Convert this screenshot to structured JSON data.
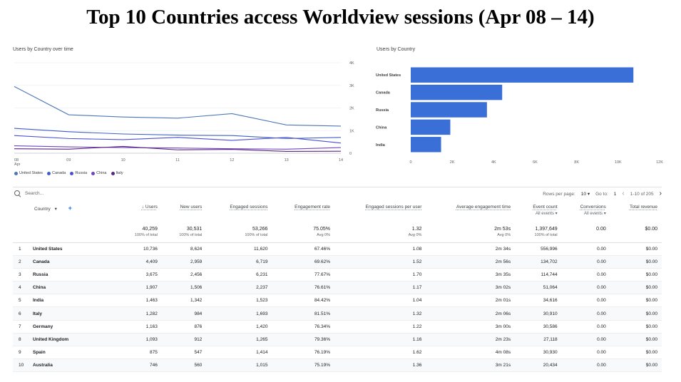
{
  "title": "Top 10 Countries access Worldview sessions (Apr 08 – 14)",
  "line_chart": {
    "card_title": "Users by Country over time",
    "y_ticks": [
      "4K",
      "3K",
      "2K",
      "1K",
      "0"
    ],
    "x_ticks": [
      "08",
      "09",
      "10",
      "11",
      "12",
      "13",
      "14"
    ],
    "x_sub": "Apr",
    "legend": [
      {
        "name": "United States",
        "color": "#4a78b8"
      },
      {
        "name": "Canada",
        "color": "#3f5fc8"
      },
      {
        "name": "Russia",
        "color": "#4a4fd6"
      },
      {
        "name": "China",
        "color": "#7045c0"
      },
      {
        "name": "Italy",
        "color": "#5a2480"
      }
    ]
  },
  "bar_chart": {
    "card_title": "Users by Country",
    "color": "#3b6fd8",
    "x_ticks": [
      "0",
      "2K",
      "4K",
      "6K",
      "8K",
      "10K",
      "12K"
    ]
  },
  "chart_data": [
    {
      "type": "line",
      "title": "Users by Country over time",
      "x": [
        "Apr 08",
        "Apr 09",
        "Apr 10",
        "Apr 11",
        "Apr 12",
        "Apr 13",
        "Apr 14"
      ],
      "ylim": [
        0,
        4000
      ],
      "series": [
        {
          "name": "United States",
          "values": [
            2950,
            1700,
            1600,
            1550,
            1750,
            1250,
            1200
          ]
        },
        {
          "name": "Canada",
          "values": [
            1100,
            950,
            850,
            800,
            780,
            650,
            700
          ]
        },
        {
          "name": "Russia",
          "values": [
            780,
            650,
            600,
            700,
            570,
            700,
            450
          ]
        },
        {
          "name": "China",
          "values": [
            330,
            280,
            250,
            230,
            200,
            180,
            250
          ]
        },
        {
          "name": "Italy",
          "values": [
            200,
            180,
            300,
            150,
            170,
            80,
            90
          ]
        }
      ]
    },
    {
      "type": "bar",
      "orientation": "horizontal",
      "title": "Users by Country",
      "categories": [
        "United States",
        "Canada",
        "Russia",
        "China",
        "India"
      ],
      "values": [
        10736,
        4409,
        3675,
        1907,
        1463
      ],
      "xlim": [
        0,
        12000
      ]
    }
  ],
  "toolbar": {
    "search_placeholder": "Search...",
    "rows_per_page_label": "Rows per page:",
    "rows_per_page_value": "10",
    "goto_label": "Go to:",
    "goto_value": "1",
    "range": "1-10 of 205"
  },
  "table": {
    "headers": {
      "country": "Country",
      "users": "↓ Users",
      "new_users": "New users",
      "engaged_sessions": "Engaged sessions",
      "engagement_rate": "Engagement rate",
      "eng_per_user": "Engaged sessions per user",
      "avg_time": "Average engagement time",
      "event_count": "Event count",
      "event_sub": "All events",
      "conversions": "Conversions",
      "conv_sub": "All events",
      "revenue": "Total revenue"
    },
    "totals": {
      "users": "40,259",
      "users_sub": "100% of total",
      "new_users": "30,531",
      "new_users_sub": "100% of total",
      "engaged_sessions": "53,266",
      "engaged_sessions_sub": "100% of total",
      "engagement_rate": "75.05%",
      "engagement_rate_sub": "Avg 0%",
      "eng_per_user": "1.32",
      "eng_per_user_sub": "Avg 0%",
      "avg_time": "2m 53s",
      "avg_time_sub": "Avg 0%",
      "event_count": "1,397,649",
      "event_count_sub": "100% of total",
      "conversions": "0.00",
      "revenue": "$0.00"
    },
    "rows": [
      [
        "1",
        "United States",
        "10,736",
        "8,624",
        "11,620",
        "67.46%",
        "1.08",
        "2m 34s",
        "556,996",
        "0.00",
        "$0.00"
      ],
      [
        "2",
        "Canada",
        "4,409",
        "2,959",
        "6,719",
        "69.62%",
        "1.52",
        "2m 56s",
        "134,702",
        "0.00",
        "$0.00"
      ],
      [
        "3",
        "Russia",
        "3,675",
        "2,456",
        "6,231",
        "77.67%",
        "1.70",
        "3m 35s",
        "114,744",
        "0.00",
        "$0.00"
      ],
      [
        "4",
        "China",
        "1,907",
        "1,506",
        "2,237",
        "76.61%",
        "1.17",
        "3m 02s",
        "51,064",
        "0.00",
        "$0.00"
      ],
      [
        "5",
        "India",
        "1,463",
        "1,342",
        "1,523",
        "84.42%",
        "1.04",
        "2m 01s",
        "34,616",
        "0.00",
        "$0.00"
      ],
      [
        "6",
        "Italy",
        "1,282",
        "984",
        "1,693",
        "81.51%",
        "1.32",
        "2m 06s",
        "30,910",
        "0.00",
        "$0.00"
      ],
      [
        "7",
        "Germany",
        "1,163",
        "876",
        "1,420",
        "76.34%",
        "1.22",
        "3m 00s",
        "30,586",
        "0.00",
        "$0.00"
      ],
      [
        "8",
        "United Kingdom",
        "1,093",
        "912",
        "1,265",
        "79.36%",
        "1.16",
        "2m 23s",
        "27,118",
        "0.00",
        "$0.00"
      ],
      [
        "9",
        "Spain",
        "875",
        "547",
        "1,414",
        "76.19%",
        "1.62",
        "4m 08s",
        "30,930",
        "0.00",
        "$0.00"
      ],
      [
        "10",
        "Australia",
        "746",
        "560",
        "1,015",
        "75.19%",
        "1.36",
        "3m 21s",
        "20,434",
        "0.00",
        "$0.00"
      ]
    ]
  }
}
